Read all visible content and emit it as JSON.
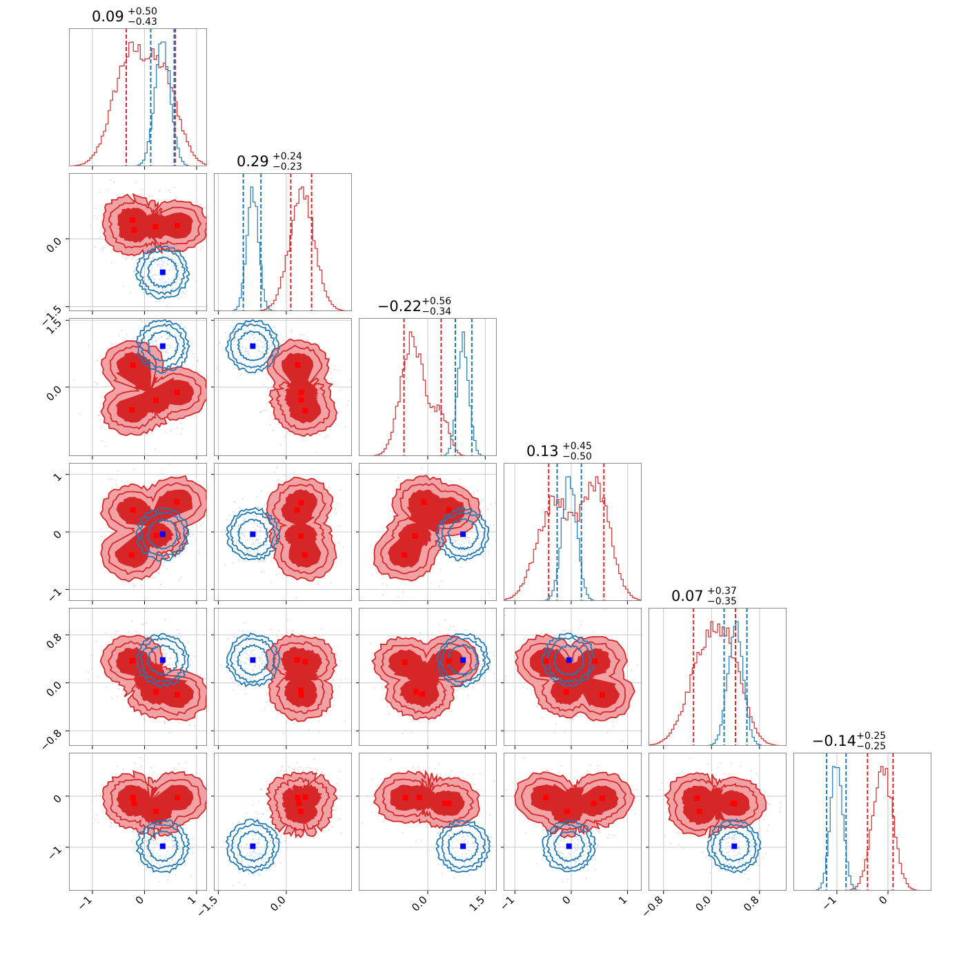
{
  "chart_data": {
    "type": "corner",
    "parameters": 6,
    "titles": [
      {
        "value": "0.09",
        "plus": "+0.50",
        "minus": "−0.43"
      },
      {
        "value": "0.29",
        "plus": "+0.24",
        "minus": "−0.23"
      },
      {
        "value": "−0.22",
        "plus": "+0.56",
        "minus": "−0.34"
      },
      {
        "value": "0.13",
        "plus": "+0.45",
        "minus": "−0.50"
      },
      {
        "value": "0.07",
        "plus": "+0.37",
        "minus": "−0.35"
      },
      {
        "value": "−0.14",
        "plus": "+0.25",
        "minus": "−0.25"
      }
    ],
    "axes": [
      {
        "range": [
          -1.45,
          1.2
        ],
        "ticks": [
          -1,
          0,
          1
        ],
        "tick_labels": [
          "−1",
          "0",
          "1"
        ]
      },
      {
        "range": [
          -1.6,
          1.45
        ],
        "ticks": [
          -1.5,
          0.0
        ],
        "tick_labels": [
          "−1.5",
          "0.0"
        ]
      },
      {
        "range": [
          -1.8,
          1.8
        ],
        "ticks": [
          0.0,
          1.5
        ],
        "tick_labels": [
          "0.0",
          "1.5"
        ]
      },
      {
        "range": [
          -1.2,
          1.25
        ],
        "ticks": [
          -1,
          0,
          1
        ],
        "tick_labels": [
          "−1",
          "0",
          "1"
        ]
      },
      {
        "range": [
          -1.05,
          1.25
        ],
        "ticks": [
          -0.8,
          0.0,
          0.8
        ],
        "tick_labels": [
          "−0.8",
          "0.0",
          "0.8"
        ]
      },
      {
        "range": [
          -1.85,
          0.85
        ],
        "ticks": [
          -1,
          0
        ],
        "tick_labels": [
          "−1",
          "0"
        ]
      }
    ],
    "row_axes": [
      null,
      {
        "range": [
          -1.6,
          1.45
        ],
        "ticks": [
          -1.5,
          0.0
        ],
        "tick_labels": [
          "−1.5",
          "0.0"
        ]
      },
      {
        "range": [
          -1.55,
          1.55
        ],
        "ticks": [
          0.0,
          1.5
        ],
        "tick_labels": [
          "0.0",
          "1.5"
        ]
      },
      {
        "range": [
          -1.2,
          1.2
        ],
        "ticks": [
          -1,
          0,
          1
        ],
        "tick_labels": [
          "−1",
          "0",
          "1"
        ]
      },
      {
        "range": [
          -1.05,
          1.25
        ],
        "ticks": [
          -0.8,
          0.0,
          0.8
        ],
        "tick_labels": [
          "−0.8",
          "0.0",
          "0.8"
        ]
      },
      {
        "range": [
          -1.85,
          0.85
        ],
        "ticks": [
          -1,
          0
        ],
        "tick_labels": [
          "−1",
          "0"
        ]
      }
    ],
    "series": [
      {
        "color": "#d62728",
        "fill_light": "#f2a2a4",
        "fill_dark": "#d62728",
        "quantiles": [
          [
            -0.35,
            0.59
          ],
          [
            0.1,
            0.56
          ],
          [
            -0.62,
            0.35
          ],
          [
            -0.4,
            0.58
          ],
          [
            -0.3,
            0.4
          ],
          [
            -0.4,
            0.1
          ]
        ],
        "marginals": [
          {
            "peaks": [
              [
                -0.3,
                0.55,
                0.32
              ],
              [
                0.35,
                0.45,
                0.3
              ]
            ]
          },
          {
            "peaks": [
              [
                0.35,
                1.0,
                0.28
              ]
            ]
          },
          {
            "peaks": [
              [
                -0.4,
                1.0,
                0.3
              ],
              [
                0.35,
                0.35,
                0.2
              ]
            ]
          },
          {
            "peaks": [
              [
                -0.3,
                0.7,
                0.3
              ],
              [
                0.45,
                0.8,
                0.25
              ]
            ]
          },
          {
            "peaks": [
              [
                -0.1,
                0.7,
                0.3
              ],
              [
                0.3,
                0.55,
                0.25
              ]
            ]
          },
          {
            "peaks": [
              [
                -0.1,
                1.0,
                0.2
              ]
            ]
          }
        ],
        "markers": [
          [
            0.26,
            -0.24,
            -0.62,
            -0.24,
            -0.24,
            0.5
          ],
          [
            0.2,
            -0.21,
            -0.64,
            0.38,
            0.38,
            0.32
          ],
          [
            0.26,
            0.18,
            0.53,
            -0.05,
            -0.05,
            0.4
          ],
          [
            0.61,
            0.61,
            0.18,
            0.47,
            0.48,
            0.47
          ]
        ],
        "pair_centers": {
          "1,0": [
            [
              -0.23,
              0.41
            ],
            [
              -0.2,
              0.2
            ],
            [
              0.21,
              0.27
            ],
            [
              0.63,
              0.29
            ]
          ],
          "2,0": [
            [
              -0.22,
              0.49
            ],
            [
              -0.24,
              -0.51
            ],
            [
              0.22,
              -0.3
            ],
            [
              0.63,
              -0.12
            ]
          ],
          "2,1": [
            [
              0.25,
              0.5
            ],
            [
              0.33,
              -0.12
            ],
            [
              0.33,
              -0.29
            ],
            [
              0.42,
              -0.53
            ]
          ],
          "3,0": [
            [
              -0.22,
              0.38
            ],
            [
              -0.25,
              -0.4
            ],
            [
              0.23,
              -0.06
            ],
            [
              0.62,
              0.52
            ]
          ],
          "3,1": [
            [
              0.24,
              0.38
            ],
            [
              0.32,
              -0.07
            ],
            [
              0.33,
              0.51
            ],
            [
              0.41,
              -0.4
            ]
          ],
          "3,2": [
            [
              -0.61,
              -0.4
            ],
            [
              -0.33,
              -0.07
            ],
            [
              -0.1,
              0.52
            ],
            [
              0.55,
              0.38
            ]
          ],
          "4,0": [
            [
              -0.22,
              0.37
            ],
            [
              0.22,
              -0.15
            ],
            [
              0.63,
              -0.2
            ],
            [
              -0.24,
              0.36
            ]
          ],
          "4,1": [
            [
              0.24,
              0.38
            ],
            [
              0.32,
              -0.12
            ],
            [
              0.33,
              -0.2
            ],
            [
              0.42,
              0.35
            ]
          ],
          "4,2": [
            [
              -0.6,
              0.34
            ],
            [
              -0.3,
              -0.15
            ],
            [
              -0.14,
              -0.19
            ],
            [
              0.55,
              0.36
            ]
          ],
          "4,3": [
            [
              -0.45,
              0.36
            ],
            [
              -0.09,
              -0.15
            ],
            [
              0.42,
              0.36
            ],
            [
              0.55,
              -0.2
            ]
          ],
          "5,0": [
            [
              -0.22,
              -0.03
            ],
            [
              -0.2,
              -0.14
            ],
            [
              0.22,
              -0.3
            ],
            [
              0.63,
              -0.03
            ]
          ],
          "5,1": [
            [
              0.25,
              -0.03
            ],
            [
              0.28,
              -0.14
            ],
            [
              0.32,
              -0.3
            ],
            [
              0.42,
              -0.02
            ]
          ],
          "5,2": [
            [
              -0.58,
              -0.03
            ],
            [
              -0.22,
              -0.03
            ],
            [
              0.45,
              -0.14
            ],
            [
              0.55,
              -0.14
            ]
          ],
          "5,3": [
            [
              -0.45,
              -0.03
            ],
            [
              -0.07,
              -0.3
            ],
            [
              0.4,
              -0.14
            ],
            [
              0.55,
              -0.04
            ]
          ],
          "5,4": [
            [
              -0.24,
              -0.04
            ],
            [
              -0.2,
              -0.3
            ],
            [
              0.38,
              -0.14
            ],
            [
              0.36,
              -0.14
            ]
          ]
        }
      },
      {
        "color": "#1f77b4",
        "quantiles": [
          [
            0.12,
            0.57
          ],
          [
            -0.95,
            -0.56
          ],
          [
            0.72,
            1.15
          ],
          [
            -0.25,
            0.18
          ],
          [
            0.21,
            0.59
          ],
          [
            -1.2,
            -0.82
          ]
        ],
        "marginals": [
          {
            "peaks": [
              [
                0.35,
                1.0,
                0.15
              ]
            ]
          },
          {
            "peaks": [
              [
                -0.74,
                1.0,
                0.13
              ]
            ]
          },
          {
            "peaks": [
              [
                0.92,
                1.0,
                0.15
              ]
            ]
          },
          {
            "peaks": [
              [
                -0.03,
                1.0,
                0.13
              ]
            ]
          },
          {
            "peaks": [
              [
                0.4,
                1.0,
                0.13
              ]
            ]
          },
          {
            "peaks": [
              [
                -1.0,
                1.0,
                0.12
              ]
            ]
          }
        ],
        "truth": [
          0.35,
          -0.74,
          0.92,
          -0.04,
          0.38,
          -0.98
        ]
      }
    ]
  }
}
